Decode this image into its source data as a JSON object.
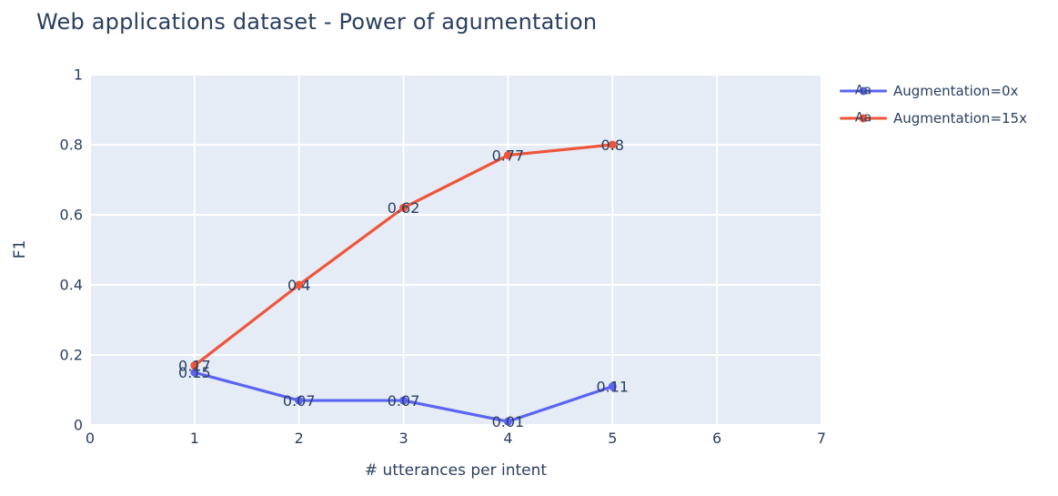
{
  "chart": {
    "title": "Web applications dataset - Power of agumentation"
  },
  "chart_data": {
    "type": "line",
    "title": "Web applications dataset - Power of agumentation",
    "xlabel": "# utterances per intent",
    "ylabel": "F1",
    "x": [
      1,
      2,
      3,
      4,
      5
    ],
    "series": [
      {
        "name": "Augmentation=0x",
        "color": "#5A64F0",
        "values": [
          0.15,
          0.07,
          0.07,
          0.01,
          0.11
        ],
        "point_labels": [
          "0.15",
          "0.07",
          "0.07",
          "0.01",
          "0.11"
        ]
      },
      {
        "name": "Augmentation=15x",
        "color": "#EF553B",
        "values": [
          0.17,
          0.4,
          0.62,
          0.77,
          0.8
        ],
        "point_labels": [
          "0.17",
          "0.4",
          "0.62",
          "0.77",
          "0.8"
        ]
      }
    ],
    "xlim": [
      0,
      7
    ],
    "ylim": [
      0,
      1
    ],
    "xticks": [
      "0",
      "1",
      "2",
      "3",
      "4",
      "5",
      "6",
      "7"
    ],
    "yticks": [
      "0",
      "0.2",
      "0.4",
      "0.6",
      "0.8",
      "1"
    ],
    "grid": true,
    "legend_position": "outside-top-right",
    "legend_sample_text": "Aa",
    "point_label_position": "middle-center",
    "colors": {
      "plot_background": "#E5ECF6",
      "paper_background": "#FFFFFF",
      "font": "#2A3F5F",
      "gridline": "#FFFFFF"
    }
  }
}
